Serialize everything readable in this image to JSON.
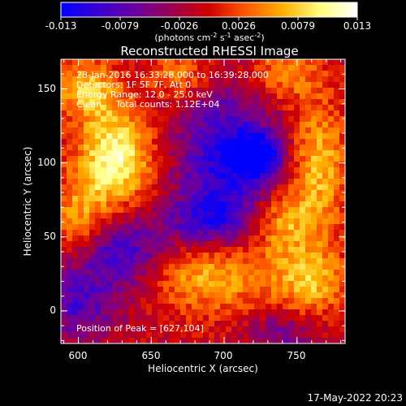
{
  "chart_data": {
    "type": "heatmap",
    "title": "Reconstructed RHESSI Image",
    "xlabel": "Heliocentric X (arcsec)",
    "ylabel": "Heliocentric Y (arcsec)",
    "xlim": [
      588,
      783
    ],
    "ylim": [
      -22,
      170
    ],
    "x_ticks": [
      600,
      650,
      700,
      750
    ],
    "y_ticks": [
      0,
      50,
      100,
      150
    ],
    "colorbar": {
      "range": [
        -0.013,
        0.013
      ],
      "tick_labels": [
        "-0.013",
        "-0.0079",
        "-0.0026",
        "0.0026",
        "0.0079",
        "0.013"
      ],
      "colors": [
        "#0000ff",
        "#3a00d0",
        "#6a00a0",
        "#9a0050",
        "#d00000",
        "#ff5a00",
        "#ffb000",
        "#ffff80",
        "#ffffff"
      ]
    },
    "annotations": [
      "28-Jan-2016 16:33:28.000 to 16:39:28.000",
      "Detectors: 1F 5F 7F, Att 0",
      "Energy Range: 12.0 - 25.0 keV",
      "Clean     Total counts: 1.12E+04"
    ],
    "peak_label": "Position of Peak = [627,104]",
    "peak_position": [
      627,
      104
    ],
    "blobs": [
      {
        "x": 625,
        "y": 103,
        "amp": 0.012,
        "sx": 18,
        "sy": 24
      },
      {
        "x": 605,
        "y": 150,
        "amp": 0.008,
        "sx": 16,
        "sy": 14
      },
      {
        "x": 600,
        "y": 60,
        "amp": 0.007,
        "sx": 14,
        "sy": 20
      },
      {
        "x": 690,
        "y": 25,
        "amp": 0.009,
        "sx": 30,
        "sy": 18
      },
      {
        "x": 760,
        "y": 20,
        "amp": 0.008,
        "sx": 18,
        "sy": 16
      },
      {
        "x": 765,
        "y": 100,
        "amp": 0.008,
        "sx": 14,
        "sy": 30
      },
      {
        "x": 740,
        "y": 160,
        "amp": 0.006,
        "sx": 18,
        "sy": 12
      },
      {
        "x": 740,
        "y": 60,
        "amp": 0.007,
        "sx": 18,
        "sy": 16
      },
      {
        "x": 672,
        "y": 160,
        "amp": 0.006,
        "sx": 16,
        "sy": 12
      },
      {
        "x": 700,
        "y": 100,
        "amp": -0.01,
        "sx": 22,
        "sy": 38
      },
      {
        "x": 725,
        "y": 105,
        "amp": -0.011,
        "sx": 12,
        "sy": 12
      },
      {
        "x": 630,
        "y": 40,
        "amp": -0.009,
        "sx": 24,
        "sy": 18
      },
      {
        "x": 690,
        "y": 60,
        "amp": -0.006,
        "sx": 22,
        "sy": 12
      },
      {
        "x": 600,
        "y": 5,
        "amp": -0.007,
        "sx": 18,
        "sy": 18
      },
      {
        "x": 740,
        "y": -15,
        "amp": -0.005,
        "sx": 16,
        "sy": 10
      }
    ]
  },
  "footer": {
    "timestamp": "17-May-2022 20:23"
  }
}
